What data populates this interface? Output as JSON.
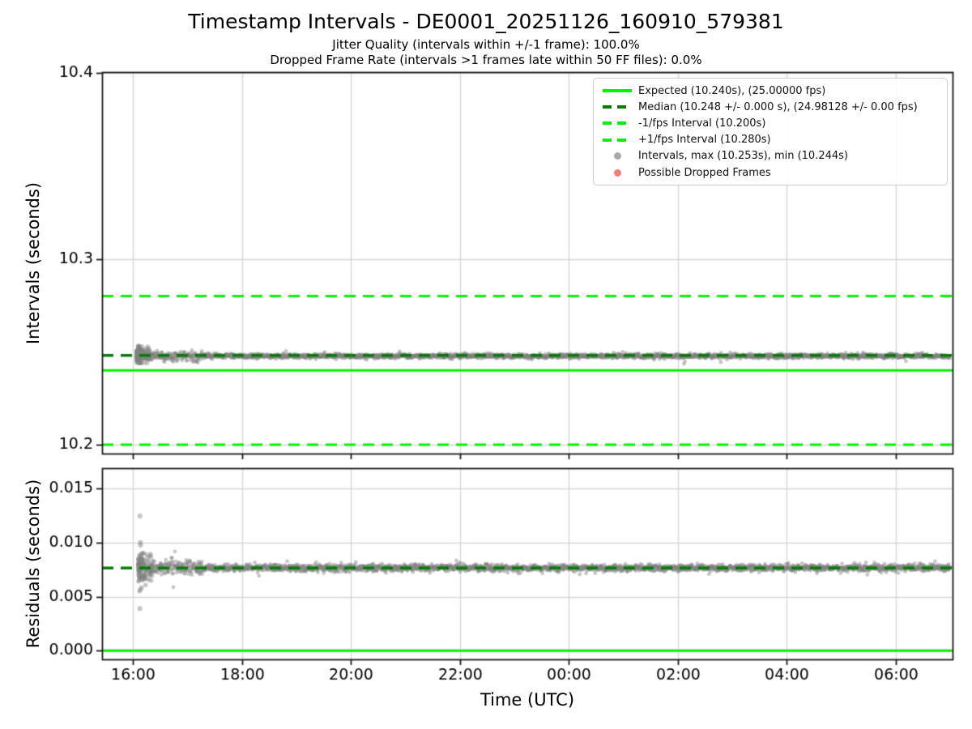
{
  "header": {
    "title": "Timestamp Intervals - DE0001_20251126_160910_579381",
    "subtitle1": "Jitter Quality (intervals within +/-1 frame): 100.0%",
    "subtitle2": "Dropped Frame Rate (intervals >1 frames late within 50 FF files): 0.0%"
  },
  "colors": {
    "expected_line": "#00f400",
    "median_line": "#057d05",
    "interval_bound_line": "#00f400",
    "scatter_gray": "rgba(128,128,128,0.45)",
    "dropped_red": "rgba(244,67,67,0.65)",
    "grid": "#d6d6d6",
    "spine": "#1a1a1a",
    "tick_text": "#000000"
  },
  "legend": {
    "items": [
      {
        "label": "Expected (10.240s), (25.00000 fps)",
        "marker": "solid-line",
        "color": "#00f400"
      },
      {
        "label": "Median (10.248 +/- 0.000 s), (24.98128 +/- 0.00 fps)",
        "marker": "dashed-line",
        "color": "#057d05"
      },
      {
        "label": "-1/fps Interval (10.200s)",
        "marker": "dashed-line",
        "color": "#00f400"
      },
      {
        "label": "+1/fps Interval (10.280s)",
        "marker": "dashed-line",
        "color": "#00f400"
      },
      {
        "label": "Intervals, max (10.253s), min (10.244s)",
        "marker": "dot",
        "color": "rgba(140,140,140,0.75)"
      },
      {
        "label": "Possible Dropped Frames",
        "marker": "dot",
        "color": "rgba(244,80,80,0.75)"
      }
    ]
  },
  "chart_data": [
    {
      "type": "scatter",
      "name": "intervals-plot",
      "ylabel": "Intervals (seconds)",
      "xlim": [
        15.435,
        31.04
      ],
      "ylim": [
        10.1952,
        10.4005
      ],
      "xticks": {
        "values": [
          16,
          18,
          20,
          22,
          24,
          26,
          28,
          30
        ],
        "labels": [
          "16:00",
          "18:00",
          "20:00",
          "22:00",
          "00:00",
          "02:00",
          "04:00",
          "06:00"
        ],
        "show_labels": false
      },
      "yticks": {
        "values": [
          10.2,
          10.3,
          10.4
        ],
        "labels": [
          "10.2",
          "10.3",
          "10.4"
        ]
      },
      "grid": true,
      "legend_position": "upper right",
      "hlines": [
        {
          "name": "minus-1fps-interval",
          "value": 10.2,
          "color": "#00f400",
          "style": "dashed",
          "width": 3
        },
        {
          "name": "plus-1fps-interval",
          "value": 10.28,
          "color": "#00f400",
          "style": "dashed",
          "width": 3
        },
        {
          "name": "expected",
          "value": 10.24,
          "color": "#00f400",
          "style": "solid",
          "width": 3
        },
        {
          "name": "median",
          "value": 10.248,
          "color": "#057d05",
          "style": "dashed",
          "width": 3.5
        }
      ],
      "series": [
        {
          "name": "intervals",
          "color": "rgba(128,128,128,0.45)",
          "stats": {
            "median": 10.248,
            "max": 10.253,
            "min": 10.244,
            "expected": 10.24,
            "fps": 25.0
          },
          "band": {
            "x_start": 16.3,
            "x_end": 31.0,
            "mean": 10.2477,
            "sigma": 0.0006,
            "taper_until": 17.3,
            "taper_scale": 1.9,
            "n": 2600
          },
          "cluster": {
            "x_start": 16.07,
            "x_end": 16.32,
            "mean": 10.248,
            "sigma": 0.0021,
            "n": 140,
            "clip_min": 10.244,
            "clip_max": 10.253
          },
          "points": [
            [
              16.1,
              10.253
            ],
            [
              16.11,
              10.2524
            ],
            [
              16.1,
              10.2516
            ],
            [
              16.12,
              10.2506
            ],
            [
              16.11,
              10.2452
            ],
            [
              16.1,
              10.2446
            ],
            [
              16.12,
              10.2442
            ],
            [
              16.13,
              10.244
            ],
            [
              16.14,
              10.2468
            ],
            [
              16.17,
              10.2478
            ],
            [
              16.2,
              10.2482
            ],
            [
              16.24,
              10.2474
            ]
          ]
        },
        {
          "name": "possible-dropped-frames",
          "color": "rgba(244,67,67,0.65)",
          "points": []
        }
      ]
    },
    {
      "type": "scatter",
      "name": "residuals-plot",
      "ylabel": "Residuals (seconds)",
      "xlabel": "Time (UTC)",
      "xlim": [
        15.435,
        31.04
      ],
      "ylim": [
        -0.0008,
        0.01687
      ],
      "xticks": {
        "values": [
          16,
          18,
          20,
          22,
          24,
          26,
          28,
          30
        ],
        "labels": [
          "16:00",
          "18:00",
          "20:00",
          "22:00",
          "00:00",
          "02:00",
          "04:00",
          "06:00"
        ],
        "show_labels": true
      },
      "yticks": {
        "values": [
          0.0,
          0.005,
          0.01,
          0.015
        ],
        "labels": [
          "0.000",
          "0.005",
          "0.010",
          "0.015"
        ]
      },
      "grid": true,
      "hlines": [
        {
          "name": "zero-residual",
          "value": 0.0,
          "color": "#00f400",
          "style": "solid",
          "width": 3
        },
        {
          "name": "median-residual",
          "value": 0.00765,
          "color": "#057d05",
          "style": "dashed",
          "width": 3.5
        }
      ],
      "series": [
        {
          "name": "residuals",
          "color": "rgba(128,128,128,0.45)",
          "band": {
            "x_start": 16.3,
            "x_end": 31.0,
            "mean": 0.00765,
            "sigma": 0.00016,
            "taper_until": 17.3,
            "taper_scale": 2.2,
            "n": 2600
          },
          "cluster": {
            "x_start": 16.1,
            "x_end": 16.36,
            "mean": 0.00762,
            "sigma": 0.0008,
            "n": 110,
            "clip_min": 0.0055,
            "clip_max": 0.0098
          },
          "points": [
            [
              16.13,
              0.01245
            ],
            [
              16.14,
              0.01
            ],
            [
              16.14,
              0.00975
            ],
            [
              16.13,
              0.00885
            ],
            [
              16.16,
              0.00855
            ],
            [
              16.19,
              0.0066
            ],
            [
              16.14,
              0.00565
            ],
            [
              16.13,
              0.0039
            ]
          ]
        }
      ]
    }
  ]
}
